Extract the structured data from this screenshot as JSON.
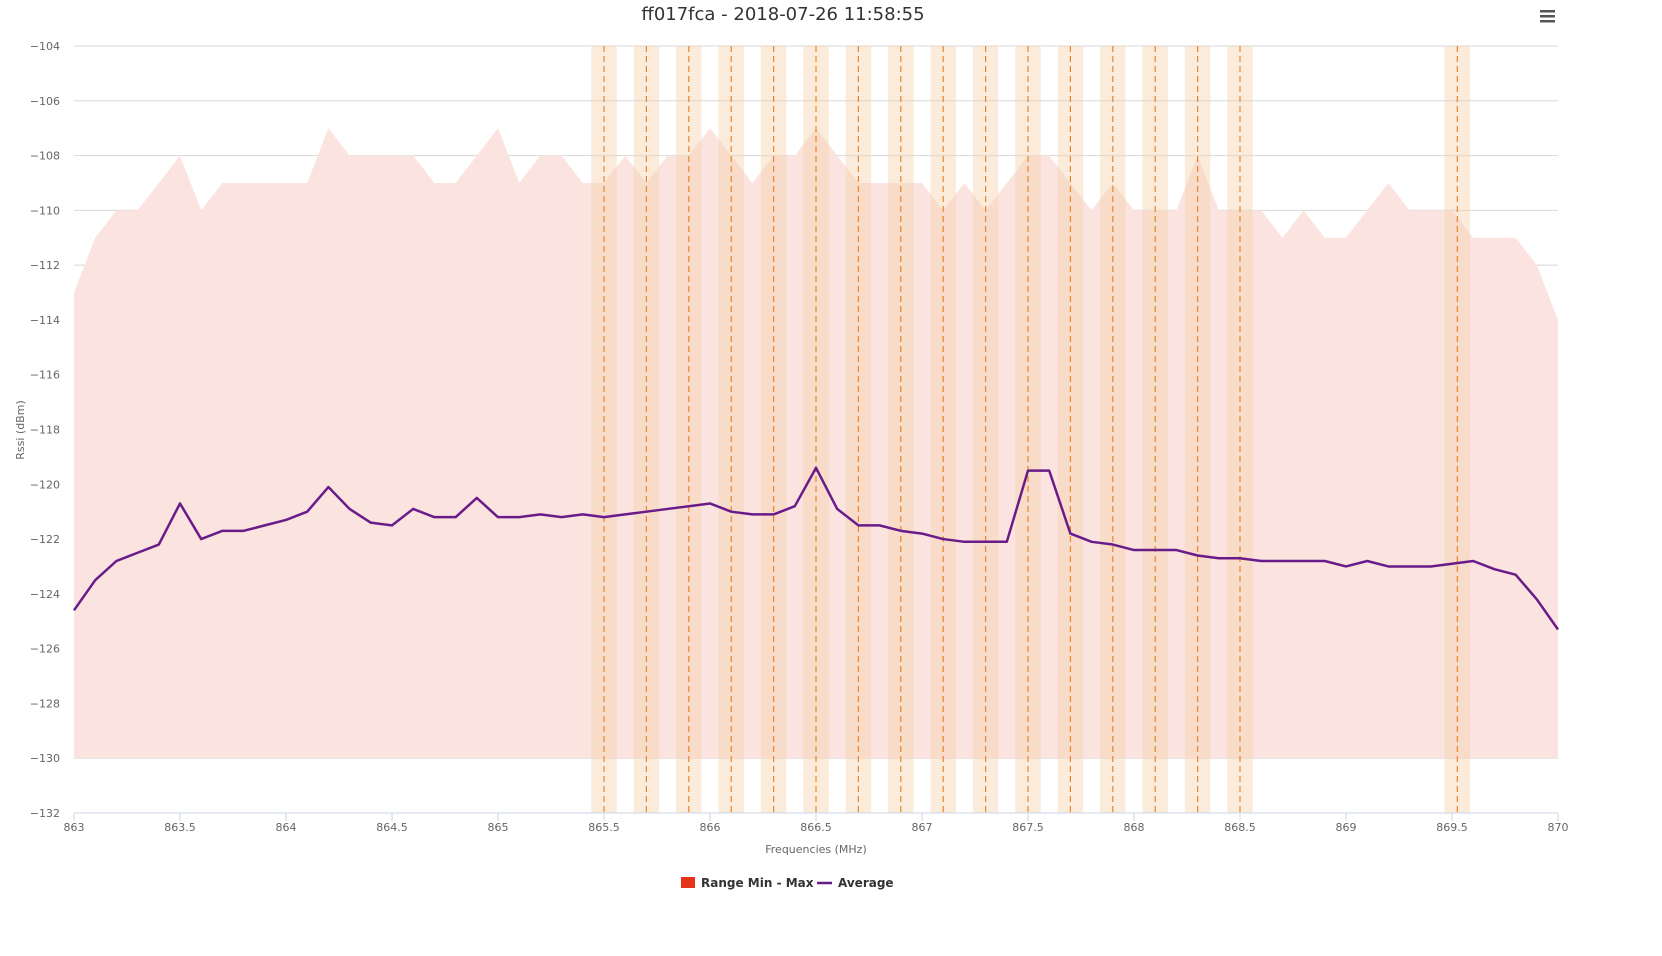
{
  "chart_data": {
    "type": "area",
    "title": "ff017fca - 2018-07-26 11:58:55",
    "xlabel": "Frequencies (MHz)",
    "ylabel": "Rssi (dBm)",
    "xlim": [
      863,
      870
    ],
    "ylim": [
      -132,
      -104
    ],
    "x_ticks": [
      863,
      863.5,
      864,
      864.5,
      865,
      865.5,
      866,
      866.5,
      867,
      867.5,
      868,
      868.5,
      869,
      869.5,
      870
    ],
    "y_ticks": [
      -104,
      -106,
      -108,
      -110,
      -112,
      -114,
      -116,
      -118,
      -120,
      -122,
      -124,
      -126,
      -128,
      -130,
      -132
    ],
    "grid": true,
    "legend_position": "bottom-center",
    "colors": {
      "range_fill": "#fbe3df",
      "range_legend": "#e8331c",
      "average_line": "#6a1b8a",
      "channel_band": "#f5d2b0",
      "channel_line": "#e8862f",
      "grid": "#d8d8d8"
    },
    "series": [
      {
        "name": "Range Min - Max",
        "kind": "arearange",
        "x": [
          863,
          863.1,
          863.2,
          863.3,
          863.4,
          863.5,
          863.6,
          863.7,
          863.8,
          863.9,
          864,
          864.1,
          864.2,
          864.3,
          864.4,
          864.5,
          864.6,
          864.7,
          864.8,
          864.9,
          865,
          865.1,
          865.2,
          865.3,
          865.4,
          865.5,
          865.6,
          865.7,
          865.8,
          865.9,
          866,
          866.1,
          866.2,
          866.3,
          866.4,
          866.5,
          866.6,
          866.7,
          866.8,
          866.9,
          867,
          867.1,
          867.2,
          867.3,
          867.4,
          867.5,
          867.6,
          867.7,
          867.8,
          867.9,
          868,
          868.1,
          868.2,
          868.3,
          868.4,
          868.5,
          868.6,
          868.7,
          868.8,
          868.9,
          869,
          869.1,
          869.2,
          869.3,
          869.4,
          869.5,
          869.6,
          869.7,
          869.8,
          869.9,
          870
        ],
        "high": [
          -113,
          -111,
          -110,
          -110,
          -109,
          -108,
          -110,
          -109,
          -109,
          -109,
          -109,
          -109,
          -107,
          -108,
          -108,
          -108,
          -108,
          -109,
          -109,
          -108,
          -107,
          -109,
          -108,
          -108,
          -109,
          -109,
          -108,
          -109,
          -108,
          -108,
          -107,
          -108,
          -109,
          -108,
          -108,
          -107,
          -108,
          -109,
          -109,
          -109,
          -109,
          -110,
          -109,
          -110,
          -109,
          -108,
          -108,
          -109,
          -110,
          -109,
          -110,
          -110,
          -110,
          -108,
          -110,
          -110,
          -110,
          -111,
          -110,
          -111,
          -111,
          -110,
          -109,
          -110,
          -110,
          -110,
          -111,
          -111,
          -111,
          -112,
          -114
        ],
        "low": -130
      },
      {
        "name": "Average",
        "kind": "line",
        "x": [
          863,
          863.1,
          863.2,
          863.3,
          863.4,
          863.5,
          863.6,
          863.7,
          863.8,
          863.9,
          864,
          864.1,
          864.2,
          864.3,
          864.4,
          864.5,
          864.6,
          864.7,
          864.8,
          864.9,
          865,
          865.1,
          865.2,
          865.3,
          865.4,
          865.5,
          865.6,
          865.7,
          865.8,
          865.9,
          866,
          866.1,
          866.2,
          866.3,
          866.4,
          866.5,
          866.6,
          866.7,
          866.8,
          866.9,
          867,
          867.1,
          867.2,
          867.3,
          867.4,
          867.5,
          867.6,
          867.7,
          867.8,
          867.9,
          868,
          868.1,
          868.2,
          868.3,
          868.4,
          868.5,
          868.6,
          868.7,
          868.8,
          868.9,
          869,
          869.1,
          869.2,
          869.3,
          869.4,
          869.5,
          869.6,
          869.7,
          869.8,
          869.9,
          870
        ],
        "y": [
          -124.6,
          -123.5,
          -122.8,
          -122.5,
          -122.2,
          -120.7,
          -122.0,
          -121.7,
          -121.7,
          -121.5,
          -121.3,
          -121.0,
          -120.1,
          -120.9,
          -121.4,
          -121.5,
          -120.9,
          -121.2,
          -121.2,
          -120.5,
          -121.2,
          -121.2,
          -121.1,
          -121.2,
          -121.1,
          -121.2,
          -121.1,
          -121.0,
          -120.9,
          -120.8,
          -120.7,
          -121.0,
          -121.1,
          -121.1,
          -120.8,
          -119.4,
          -120.9,
          -121.5,
          -121.5,
          -121.7,
          -121.8,
          -122.0,
          -122.1,
          -122.1,
          -122.1,
          -119.5,
          -119.5,
          -121.8,
          -122.1,
          -122.2,
          -122.4,
          -122.4,
          -122.4,
          -122.6,
          -122.7,
          -122.7,
          -122.8,
          -122.8,
          -122.8,
          -122.8,
          -123.0,
          -122.8,
          -123.0,
          -123.0,
          -123.0,
          -122.9,
          -122.8,
          -123.1,
          -123.3,
          -124.2,
          -125.3
        ]
      }
    ],
    "channel_bands": [
      865.5,
      865.7,
      865.9,
      866.1,
      866.3,
      866.5,
      866.7,
      866.9,
      867.1,
      867.3,
      867.5,
      867.7,
      867.9,
      868.1,
      868.3,
      868.5,
      869.525
    ],
    "channel_band_halfwidth": 0.06
  },
  "legend": {
    "range_label": "Range Min - Max",
    "average_label": "Average"
  },
  "toolbar": {
    "menu_icon": "hamburger-menu-icon"
  }
}
